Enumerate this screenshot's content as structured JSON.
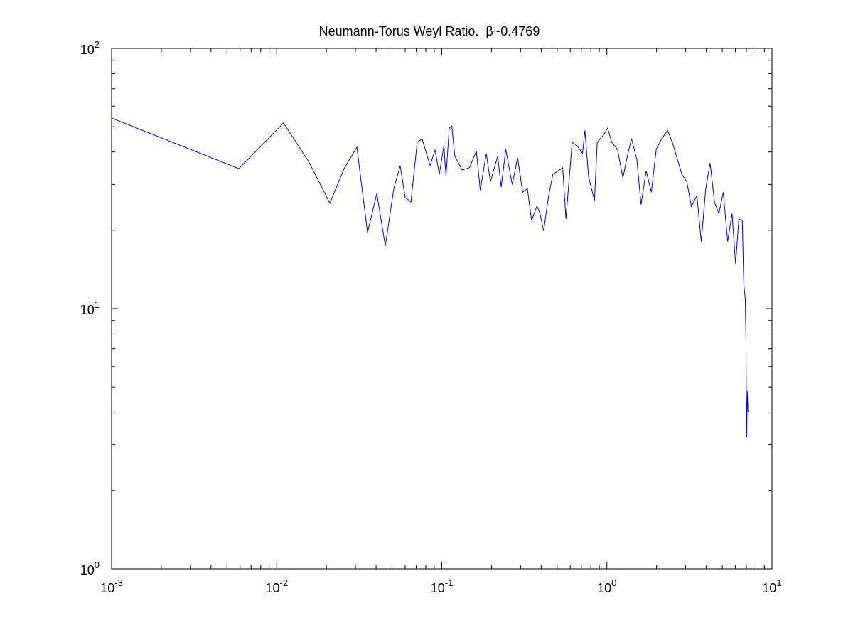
{
  "chart_data": {
    "type": "line",
    "title": "Neumann-Torus Weyl Ratio.  β~0.4769",
    "xscale": "log",
    "yscale": "log",
    "color": "#0000ff",
    "minor_ticks": true,
    "xlim": [
      0.001,
      10
    ],
    "ylim": [
      1,
      100
    ],
    "xticks": [
      {
        "value": 0.001,
        "label": "10",
        "exponent": "-3"
      },
      {
        "value": 0.01,
        "label": "10",
        "exponent": "-2"
      },
      {
        "value": 0.1,
        "label": "10",
        "exponent": "-1"
      },
      {
        "value": 1,
        "label": "10",
        "exponent": "0"
      },
      {
        "value": 10,
        "label": "10",
        "exponent": "1"
      }
    ],
    "yticks": [
      {
        "value": 1,
        "label": "10",
        "exponent": "0"
      },
      {
        "value": 10,
        "label": "10",
        "exponent": "1"
      },
      {
        "value": 100,
        "label": "10",
        "exponent": "2"
      }
    ],
    "x": [
      0.001,
      0.0059,
      0.011,
      0.0157,
      0.021,
      0.0256,
      0.0306,
      0.0355,
      0.0404,
      0.0455,
      0.0512,
      0.056,
      0.06,
      0.065,
      0.071,
      0.076,
      0.085,
      0.091,
      0.0966,
      0.103,
      0.106,
      0.111,
      0.115,
      0.12,
      0.133,
      0.147,
      0.162,
      0.171,
      0.186,
      0.197,
      0.218,
      0.229,
      0.244,
      0.267,
      0.288,
      0.309,
      0.33,
      0.35,
      0.377,
      0.393,
      0.414,
      0.444,
      0.471,
      0.505,
      0.54,
      0.565,
      0.616,
      0.66,
      0.712,
      0.736,
      0.775,
      0.841,
      0.874,
      0.951,
      1.01,
      1.07,
      1.16,
      1.25,
      1.33,
      1.41,
      1.52,
      1.61,
      1.73,
      1.86,
      1.99,
      2.15,
      2.33,
      2.49,
      2.68,
      2.85,
      3.05,
      3.25,
      3.51,
      3.73,
      3.97,
      4.22,
      4.49,
      4.77,
      5.07,
      5.39,
      5.73,
      6.02,
      6.3,
      6.61,
      6.75,
      6.89,
      6.96,
      7.02,
      7.09,
      7.16
    ],
    "values": [
      54.0,
      34.5,
      51.7,
      36.5,
      25.4,
      34.5,
      41.7,
      19.6,
      27.7,
      17.4,
      28.9,
      35.4,
      26.7,
      25.7,
      43.6,
      44.9,
      35.4,
      40.8,
      32.8,
      42.3,
      32.3,
      49.4,
      50.2,
      38.5,
      34.1,
      34.8,
      40.3,
      28.5,
      39.5,
      30.7,
      38.5,
      29.3,
      40.9,
      30.0,
      38.0,
      28.0,
      28.9,
      21.8,
      24.8,
      23.2,
      19.9,
      27.2,
      32.8,
      33.8,
      34.8,
      22.1,
      43.6,
      42.3,
      39.5,
      48.4,
      32.1,
      26.0,
      43.6,
      46.4,
      49.4,
      43.6,
      40.9,
      31.8,
      38.5,
      45.0,
      37.3,
      25.1,
      33.8,
      28.0,
      40.9,
      45.0,
      48.4,
      43.6,
      37.3,
      32.8,
      30.7,
      24.7,
      27.2,
      18.1,
      28.9,
      36.3,
      25.6,
      23.2,
      28.0,
      18.1,
      23.2,
      14.9,
      22.1,
      21.8,
      12.4,
      10.9,
      7.5,
      3.2,
      4.82,
      3.99
    ]
  }
}
